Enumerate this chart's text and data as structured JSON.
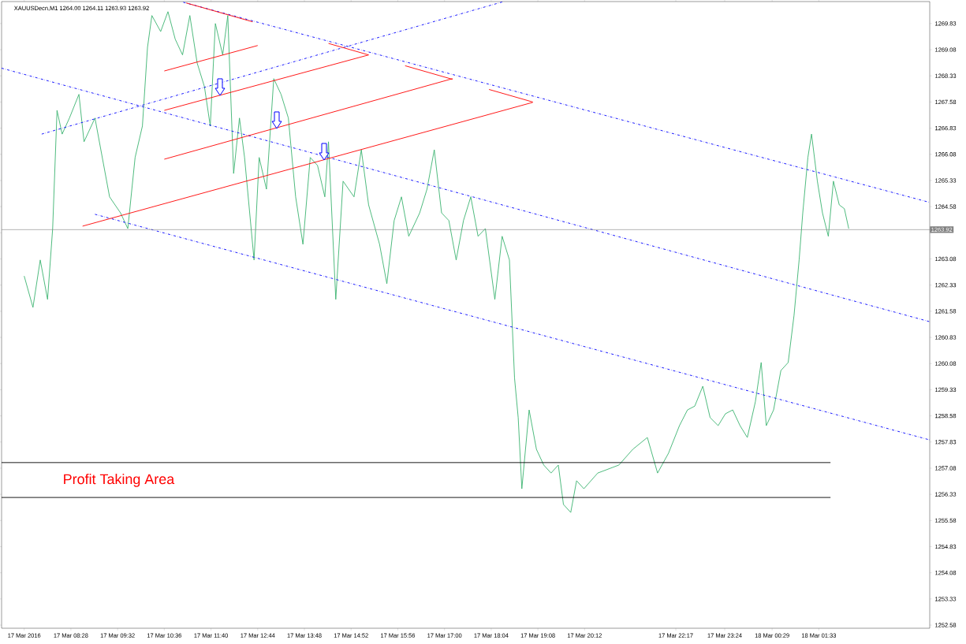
{
  "chart_data": {
    "type": "line",
    "title": "XAUUSDecn,M1 1264.00 1264.11 1263.93 1263.92",
    "xlim": [
      "2016-03-17T06:53",
      "2016-03-18T04:05"
    ],
    "ylim": [
      1252.49,
      1270.46
    ],
    "xticks": [
      {
        "value": "2016-03-17T07:24",
        "label": "17 Mar 2016"
      },
      {
        "value": "2016-03-17T08:28",
        "label": "17 Mar 08:28"
      },
      {
        "value": "2016-03-17T09:32",
        "label": "17 Mar 09:32"
      },
      {
        "value": "2016-03-17T10:36",
        "label": "17 Mar 10:36"
      },
      {
        "value": "2016-03-17T11:40",
        "label": "17 Mar 11:40"
      },
      {
        "value": "2016-03-17T12:44",
        "label": "17 Mar 12:44"
      },
      {
        "value": "2016-03-17T13:48",
        "label": "17 Mar 13:48"
      },
      {
        "value": "2016-03-17T14:52",
        "label": "17 Mar 14:52"
      },
      {
        "value": "2016-03-17T15:56",
        "label": "17 Mar 15:56"
      },
      {
        "value": "2016-03-17T17:00",
        "label": "17 Mar 17:00"
      },
      {
        "value": "2016-03-17T18:04",
        "label": "17 Mar 18:04"
      },
      {
        "value": "2016-03-17T19:08",
        "label": "17 Mar 19:08"
      },
      {
        "value": "2016-03-17T20:12",
        "label": "17 Mar 20:12"
      },
      {
        "value": "2016-03-17T22:17",
        "label": "17 Mar 22:17"
      },
      {
        "value": "2016-03-17T23:24",
        "label": "17 Mar 23:24"
      },
      {
        "value": "2016-03-18T00:29",
        "label": "18 Mar 00:29"
      },
      {
        "value": "2016-03-18T01:33",
        "label": "18 Mar 01:33"
      }
    ],
    "yticks": [
      1252.58,
      1253.33,
      1254.08,
      1254.83,
      1255.58,
      1256.33,
      1257.08,
      1257.83,
      1258.58,
      1259.33,
      1260.08,
      1260.83,
      1261.58,
      1262.33,
      1263.08,
      {
        "value": 1263.83,
        "label": null
      },
      1264.58,
      1265.33,
      1266.08,
      1266.83,
      1267.58,
      1268.33,
      1269.08,
      1269.83
    ],
    "grid": false,
    "ref_lines": [
      {
        "axis": "y",
        "value": 1263.92,
        "label": "1263.92",
        "color": "#808080"
      }
    ],
    "annotations": [
      "Profit Taking Area"
    ],
    "series": [
      {
        "color": "#3cb371",
        "line_style": "solid",
        "x": [
          "2016-03-17T07:24",
          "2016-03-17T07:36",
          "2016-03-17T07:46",
          "2016-03-17T07:56",
          "2016-03-17T08:03",
          "2016-03-17T08:09",
          "2016-03-17T08:16",
          "2016-03-17T08:26",
          "2016-03-17T08:39",
          "2016-03-17T08:46",
          "2016-03-17T09:01",
          "2016-03-17T09:11",
          "2016-03-17T09:21",
          "2016-03-17T09:36",
          "2016-03-17T09:46",
          "2016-03-17T09:56",
          "2016-03-17T10:06",
          "2016-03-17T10:13",
          "2016-03-17T10:19",
          "2016-03-17T10:31",
          "2016-03-17T10:41",
          "2016-03-17T10:51",
          "2016-03-17T11:01",
          "2016-03-17T11:11",
          "2016-03-17T11:21",
          "2016-03-17T11:31",
          "2016-03-17T11:39",
          "2016-03-17T11:46",
          "2016-03-17T11:56",
          "2016-03-17T12:03",
          "2016-03-17T12:11",
          "2016-03-17T12:19",
          "2016-03-17T12:26",
          "2016-03-17T12:39",
          "2016-03-17T12:46",
          "2016-03-17T12:56",
          "2016-03-17T13:06",
          "2016-03-17T13:16",
          "2016-03-17T13:26",
          "2016-03-17T13:36",
          "2016-03-17T13:46",
          "2016-03-17T13:56",
          "2016-03-17T14:06",
          "2016-03-17T14:16",
          "2016-03-17T14:21",
          "2016-03-17T14:31",
          "2016-03-17T14:41",
          "2016-03-17T14:56",
          "2016-03-17T15:06",
          "2016-03-17T15:16",
          "2016-03-17T15:31",
          "2016-03-17T15:41",
          "2016-03-17T15:51",
          "2016-03-17T16:01",
          "2016-03-17T16:11",
          "2016-03-17T16:26",
          "2016-03-17T16:36",
          "2016-03-17T16:46",
          "2016-03-17T16:56",
          "2016-03-17T17:06",
          "2016-03-17T17:16",
          "2016-03-17T17:26",
          "2016-03-17T17:36",
          "2016-03-17T17:46",
          "2016-03-17T17:56",
          "2016-03-17T18:09",
          "2016-03-17T18:19",
          "2016-03-17T18:29",
          "2016-03-17T18:36",
          "2016-03-17T18:41",
          "2016-03-17T18:46",
          "2016-03-17T18:56",
          "2016-03-17T19:06",
          "2016-03-17T19:16",
          "2016-03-17T19:26",
          "2016-03-17T19:36",
          "2016-03-17T19:43",
          "2016-03-17T19:53",
          "2016-03-17T20:01",
          "2016-03-17T20:11",
          "2016-03-17T20:30",
          "2016-03-17T20:59",
          "2016-03-17T21:18",
          "2016-03-17T21:38",
          "2016-03-17T21:52",
          "2016-03-17T22:07",
          "2016-03-17T22:22",
          "2016-03-17T22:33",
          "2016-03-17T22:43",
          "2016-03-17T22:54",
          "2016-03-17T23:04",
          "2016-03-17T23:15",
          "2016-03-17T23:25",
          "2016-03-17T23:35",
          "2016-03-17T23:45",
          "2016-03-17T23:55",
          "2016-03-18T00:06",
          "2016-03-18T00:14",
          "2016-03-18T00:21",
          "2016-03-18T00:31",
          "2016-03-18T00:41",
          "2016-03-18T00:51",
          "2016-03-18T00:59",
          "2016-03-18T01:06",
          "2016-03-18T01:11",
          "2016-03-18T01:18",
          "2016-03-18T01:23",
          "2016-03-18T01:31",
          "2016-03-18T01:38",
          "2016-03-18T01:46",
          "2016-03-18T01:53",
          "2016-03-18T02:01",
          "2016-03-18T02:08",
          "2016-03-18T02:14"
        ],
        "values": [
          1262.59,
          1261.69,
          1263.05,
          1261.92,
          1263.95,
          1267.34,
          1266.66,
          1267.12,
          1267.8,
          1266.44,
          1267.12,
          1265.99,
          1264.86,
          1264.4,
          1263.95,
          1265.99,
          1266.89,
          1269.15,
          1270.06,
          1269.6,
          1270.17,
          1269.38,
          1268.93,
          1270.06,
          1268.7,
          1268.02,
          1266.89,
          1269.83,
          1268.93,
          1270.06,
          1265.53,
          1267.12,
          1265.99,
          1263.05,
          1265.99,
          1265.08,
          1268.25,
          1267.8,
          1267.12,
          1264.86,
          1263.5,
          1265.99,
          1265.76,
          1264.86,
          1266.44,
          1261.92,
          1265.31,
          1264.86,
          1266.21,
          1264.63,
          1263.5,
          1262.37,
          1264.18,
          1264.86,
          1263.73,
          1264.4,
          1265.08,
          1266.21,
          1264.4,
          1264.18,
          1263.05,
          1264.18,
          1264.86,
          1263.73,
          1263.95,
          1261.92,
          1263.73,
          1263.05,
          1259.66,
          1258.53,
          1256.49,
          1258.75,
          1257.62,
          1257.17,
          1256.94,
          1257.17,
          1256.04,
          1255.81,
          1256.72,
          1256.49,
          1256.94,
          1257.17,
          1257.62,
          1257.96,
          1256.94,
          1257.51,
          1258.3,
          1258.75,
          1258.86,
          1259.43,
          1258.53,
          1258.3,
          1258.64,
          1258.75,
          1258.3,
          1257.96,
          1258.98,
          1260.11,
          1258.3,
          1258.75,
          1259.88,
          1260.11,
          1261.46,
          1263.05,
          1264.4,
          1265.99,
          1266.66,
          1265.31,
          1264.4,
          1263.73,
          1265.31,
          1264.63,
          1264.52,
          1263.95
        ]
      },
      {
        "color": "#0000ff",
        "line_style": "dashdot",
        "x": [
          "2016-03-17T07:48",
          "2016-03-17T18:21"
        ],
        "values": [
          1266.66,
          1270.46
        ]
      },
      {
        "color": "#0000ff",
        "line_style": "dashdot",
        "x": [
          "2016-03-17T06:53",
          "2016-03-18T04:05"
        ],
        "values": [
          1268.55,
          1261.28
        ]
      },
      {
        "color": "#0000ff",
        "line_style": "dashdot",
        "x": [
          "2016-03-17T09:01",
          "2016-03-18T04:05"
        ],
        "values": [
          1264.36,
          1257.89
        ]
      },
      {
        "color": "#0000ff",
        "line_style": "dashdot",
        "x": [
          "2016-03-17T11:02",
          "2016-03-18T04:05"
        ],
        "values": [
          1270.44,
          1264.7
        ]
      },
      {
        "color": "#ff0000",
        "line_style": "solid",
        "x": [
          "2016-03-17T10:36",
          "2016-03-17T12:44"
        ],
        "values": [
          1268.47,
          1269.2
        ]
      },
      {
        "color": "#ff0000",
        "line_style": "solid",
        "x": [
          "2016-03-17T10:36",
          "2016-03-17T15:16"
        ],
        "values": [
          1267.34,
          1268.93
        ]
      },
      {
        "color": "#ff0000",
        "line_style": "solid",
        "x": [
          "2016-03-17T10:36",
          "2016-03-17T17:11"
        ],
        "values": [
          1265.94,
          1268.25
        ]
      },
      {
        "color": "#ff0000",
        "line_style": "solid",
        "x": [
          "2016-03-17T08:44",
          "2016-03-17T19:01"
        ],
        "values": [
          1264.02,
          1267.57
        ]
      },
      {
        "color": "#ff0000",
        "line_style": "solid",
        "x": [
          "2016-03-17T11:06",
          "2016-03-17T12:37",
          "2016-03-17T12:38",
          "2016-03-17T14:21",
          "2016-03-17T15:16",
          "2016-03-17T15:17",
          "2016-03-17T16:06",
          "2016-03-17T17:11",
          "2016-03-17T17:12",
          "2016-03-17T18:01",
          "2016-03-17T19:01"
        ],
        "values": [
          1270.42,
          1269.88,
          null,
          1269.26,
          1268.93,
          null,
          1268.62,
          1268.23,
          null,
          1267.94,
          1267.58
        ]
      },
      {
        "color": "#000000",
        "line_style": "solid",
        "x": [
          "2016-03-17T06:53",
          "2016-03-18T01:49"
        ],
        "values": [
          1257.24,
          1257.24
        ]
      },
      {
        "color": "#000000",
        "line_style": "solid",
        "x": [
          "2016-03-17T06:53",
          "2016-03-18T01:49"
        ],
        "values": [
          1256.24,
          1256.24
        ]
      }
    ]
  }
}
